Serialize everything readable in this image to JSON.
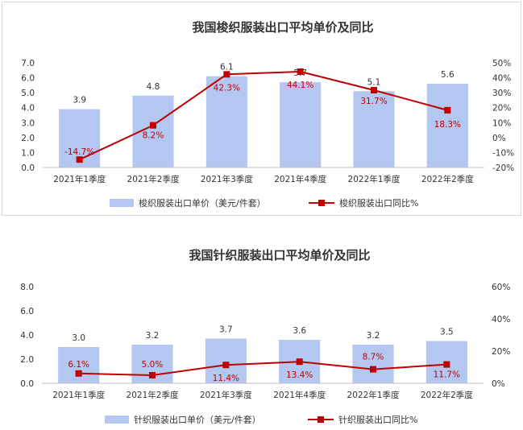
{
  "chart_data": [
    {
      "type": "bar",
      "title": "我国梭织服装出口平均单价及同比",
      "categories": [
        "2021年1季度",
        "2021年2季度",
        "2021年3季度",
        "2021年4季度",
        "2022年1季度",
        "2022年2季度"
      ],
      "series": [
        {
          "name": "梭织服装出口单价（美元/件套）",
          "type": "bar",
          "axis": "left",
          "values": [
            3.9,
            4.8,
            6.1,
            5.7,
            5.1,
            5.6
          ],
          "labels": [
            "3.9",
            "4.8",
            "6.1",
            "5.7",
            "5.1",
            "5.6"
          ]
        },
        {
          "name": "梭织服装出口同比%",
          "type": "line",
          "axis": "right",
          "values": [
            -14.7,
            8.2,
            42.3,
            44.1,
            31.7,
            18.3
          ],
          "labels": [
            "-14.7%",
            "8.2%",
            "42.3%",
            "44.1%",
            "31.7%",
            "18.3%"
          ]
        }
      ],
      "ylim": [
        0,
        7
      ],
      "yticks": [
        "0.0",
        "1.0",
        "2.0",
        "3.0",
        "4.0",
        "5.0",
        "6.0",
        "7.0"
      ],
      "y2lim": [
        -20,
        50
      ],
      "y2ticks": [
        "-20%",
        "-10%",
        "0%",
        "10%",
        "20%",
        "30%",
        "40%",
        "50%"
      ],
      "legend": "bottom",
      "grid": false,
      "colors": {
        "bar": "#b4c7f0",
        "line": "#c00000"
      }
    },
    {
      "type": "bar",
      "title": "我国针织服装出口平均单价及同比",
      "categories": [
        "2021年1季度",
        "2021年2季度",
        "2021年3季度",
        "2021年4季度",
        "2022年1季度",
        "2022年2季度"
      ],
      "series": [
        {
          "name": "针织服装出口单价（美元/件套）",
          "type": "bar",
          "axis": "left",
          "values": [
            3.0,
            3.2,
            3.7,
            3.6,
            3.2,
            3.5
          ],
          "labels": [
            "3.0",
            "3.2",
            "3.7",
            "3.6",
            "3.2",
            "3.5"
          ]
        },
        {
          "name": "针织服装出口同比%",
          "type": "line",
          "axis": "right",
          "values": [
            6.1,
            5.0,
            11.4,
            13.4,
            8.7,
            11.7
          ],
          "labels": [
            "6.1%",
            "5.0%",
            "11.4%",
            "13.4%",
            "8.7%",
            "11.7%"
          ]
        }
      ],
      "ylim": [
        0,
        8
      ],
      "yticks": [
        "0.0",
        "2.0",
        "4.0",
        "6.0",
        "8.0"
      ],
      "y2lim": [
        0,
        60
      ],
      "y2ticks": [
        "0%",
        "20%",
        "40%",
        "60%"
      ],
      "legend": "bottom",
      "grid": false,
      "colors": {
        "bar": "#b4c7f0",
        "line": "#c00000"
      }
    }
  ]
}
